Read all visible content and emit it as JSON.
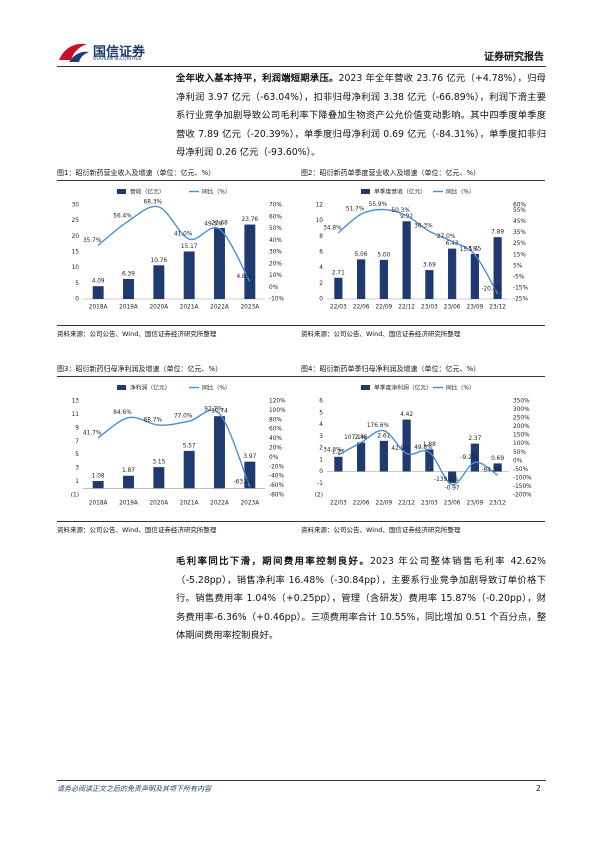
{
  "header": {
    "logo_text": "国信证券",
    "logo_subtext": "GUOSEN SECURITIES",
    "report_type": "证券研究报告"
  },
  "paragraphs": [
    {
      "lead": "全年收入基本持平，利润端短期承压。",
      "text": "2023 年全年营收 23.76 亿元（+4.78%），归母净利润 3.97 亿元（-63.04%），扣非归母净利润 3.38 亿元（-66.89%），利润下滑主要系行业竞争加剧导致公司毛利率下降叠加生物资产公允价值变动影响。其中四季度单季度营收 7.89 亿元（-20.39%），单季度归母净利润 0.69 亿元（-84.31%），单季度扣非归母净利润 0.26 亿元（-93.60%）。"
    },
    {
      "lead": "毛利率同比下滑，期间费用率控制良好。",
      "text": "2023 年公司整体销售毛利率 42.62%（-5.28pp），销售净利率 16.48%（-30.84pp），主要系行业竞争加剧导致订单价格下行。销售费用率 1.04%（+0.25pp），管理（含研发）费用率 15.87%（-0.20pp），财务费用率-6.36%（+0.46pp）。三项费用率合计 10.55%，同比增加 0.51 个百分点，整体期间费用率控制良好。"
    }
  ],
  "chart_data": [
    {
      "type": "bar",
      "title": "图1：昭衍新药营业收入及增速（单位：亿元、%）",
      "source": "资料来源：公司公告、Wind、国信证券经济研究所整理",
      "categories": [
        "2018A",
        "2019A",
        "2020A",
        "2021A",
        "2022A",
        "2023A"
      ],
      "series": [
        {
          "name": "营收（亿元）",
          "color": "#1f3a6e",
          "values": [
            4.09,
            6.39,
            10.76,
            15.17,
            22.68,
            23.76
          ],
          "value_labels": [
            "4.09",
            "6.39",
            "10.76",
            "15.17",
            "22.68",
            "23.76"
          ]
        },
        {
          "name": "同比（%）",
          "color": "#4a8fd8",
          "axis": "y2",
          "values": [
            35.7,
            56.4,
            68.3,
            41.0,
            49.5,
            4.8
          ],
          "value_labels": [
            "35.7%",
            "56.4%",
            "68.3%",
            "41.0%",
            "49.5%",
            "4.8%"
          ]
        }
      ],
      "ylim": [
        0,
        30
      ],
      "yticks": [
        0,
        5,
        10,
        15,
        20,
        25,
        30
      ],
      "y2lim": [
        -10,
        70
      ],
      "y2ticks": [
        {
          "value": -10,
          "label": "-10%"
        },
        {
          "value": 0,
          "label": "0%"
        },
        {
          "value": 10,
          "label": "10%"
        },
        {
          "value": 20,
          "label": "20%"
        },
        {
          "value": 30,
          "label": "30%"
        },
        {
          "value": 40,
          "label": "40%"
        },
        {
          "value": 50,
          "label": "50%"
        },
        {
          "value": 60,
          "label": "60%"
        },
        {
          "value": 70,
          "label": "70%"
        }
      ],
      "grid": false,
      "legend": "top"
    },
    {
      "type": "bar",
      "title": "图2：昭衍新药单季度营业收入及增速（单位：亿元、%）",
      "source": "资料来源：公司公告、Wind、国信证券经济研究所整理",
      "categories": [
        "22/03",
        "22/06",
        "22/09",
        "22/12",
        "23/03",
        "23/06",
        "23/09",
        "23/12"
      ],
      "series": [
        {
          "name": "单季度营收（亿元）",
          "color": "#1f3a6e",
          "values": [
            2.71,
            5.06,
            5.0,
            9.92,
            3.69,
            6.43,
            5.75,
            7.89
          ],
          "value_labels": [
            "2.71",
            "5.06",
            "5.00",
            "9.92",
            "3.69",
            "6.43",
            "5.75",
            "7.89"
          ]
        },
        {
          "name": "同比（%）",
          "color": "#4a8fd8",
          "axis": "y2",
          "values": [
            34.8,
            51.7,
            55.9,
            50.3,
            36.3,
            27.0,
            15.1,
            -20.4
          ],
          "value_labels": [
            "34.8%",
            "51.7%",
            "55.9%",
            "50.3%",
            "36.3%",
            "27.0%",
            "15.1%",
            "-20.4%"
          ]
        }
      ],
      "ylim": [
        0,
        12
      ],
      "yticks": [
        0,
        2,
        4,
        6,
        8,
        10,
        12
      ],
      "y2lim": [
        -25,
        60
      ],
      "y2ticks": [
        {
          "value": -25,
          "label": "-25%"
        },
        {
          "value": -15,
          "label": "-15%"
        },
        {
          "value": -5,
          "label": "-5%"
        },
        {
          "value": 5,
          "label": "5%"
        },
        {
          "value": 15,
          "label": "15%"
        },
        {
          "value": 25,
          "label": "25%"
        },
        {
          "value": 35,
          "label": "35%"
        },
        {
          "value": 45,
          "label": "45%"
        },
        {
          "value": 55,
          "label": "55%"
        },
        {
          "value": 60,
          "label": "60%"
        }
      ],
      "grid": false,
      "legend": "top"
    },
    {
      "type": "bar",
      "title": "图3：昭衍新药归母净利润及增速（单位：亿元、%）",
      "source": "资料来源：公司公告、Wind、国信证券经济研究所整理",
      "categories": [
        "2018A",
        "2019A",
        "2020A",
        "2021A",
        "2022A",
        "2023A"
      ],
      "series": [
        {
          "name": "净利润（亿元）",
          "color": "#1f3a6e",
          "values": [
            1.08,
            1.87,
            3.15,
            5.57,
            10.74,
            3.97
          ],
          "value_labels": [
            "1.08",
            "1.87",
            "3.15",
            "5.57",
            "10.74",
            "3.97"
          ]
        },
        {
          "name": "同比（%）",
          "color": "#4a8fd8",
          "axis": "y2",
          "values": [
            41.7,
            84.6,
            68.7,
            77.0,
            92.7,
            -63.0
          ],
          "value_labels": [
            "41.7%",
            "84.6%",
            "68.7%",
            "77.0%",
            "92.7%",
            "-63.0%"
          ]
        }
      ],
      "ylim": [
        -1,
        13
      ],
      "yticks": [
        {
          "value": -1,
          "label": "(1)"
        },
        1,
        3,
        5,
        7,
        9,
        11,
        13
      ],
      "y2lim": [
        -80,
        120
      ],
      "y2ticks": [
        {
          "value": -80,
          "label": "-80%"
        },
        {
          "value": -60,
          "label": "-60%"
        },
        {
          "value": -40,
          "label": "-40%"
        },
        {
          "value": -20,
          "label": "-20%"
        },
        {
          "value": 0,
          "label": "0%"
        },
        {
          "value": 20,
          "label": "20%"
        },
        {
          "value": 40,
          "label": "40%"
        },
        {
          "value": 60,
          "label": "60%"
        },
        {
          "value": 80,
          "label": "80%"
        },
        {
          "value": 100,
          "label": "100%"
        },
        {
          "value": 120,
          "label": "120%"
        }
      ],
      "grid": false,
      "legend": "top"
    },
    {
      "type": "bar",
      "title": "图4：昭衍新药单季归母净利润及增速（单位：亿元、%）",
      "source": "资料来源：公司公告、Wind、国信证券经济研究所整理",
      "categories": [
        "22/03",
        "22/06",
        "22/09",
        "22/12",
        "23/03",
        "23/06",
        "23/09",
        "23/12"
      ],
      "series": [
        {
          "name": "单季度净利润（亿元）",
          "color": "#1f3a6e",
          "values": [
            1.25,
            2.46,
            2.61,
            4.42,
            1.88,
            -0.97,
            2.37,
            0.69
          ],
          "value_labels": [
            "1.25",
            "2.46",
            "2.61",
            "4.42",
            "1.88",
            "-0.97",
            "2.37",
            "0.69"
          ]
        },
        {
          "name": "同比（%）",
          "color": "#4a8fd8",
          "axis": "y2",
          "values": [
            34.3,
            107.1,
            176.6,
            42.9,
            49.8,
            -139.5,
            -9.2,
            -84.3
          ],
          "value_labels": [
            "34.3%",
            "107.1%",
            "176.6%",
            "42.9%",
            "49.8%",
            "-139.5%",
            "-9.2%",
            "-84.3%"
          ]
        }
      ],
      "ylim": [
        -2,
        6
      ],
      "yticks": [
        {
          "value": -2,
          "label": "(2)"
        },
        -1,
        0,
        1,
        2,
        3,
        4,
        5,
        6
      ],
      "y2lim": [
        -200,
        350
      ],
      "y2ticks": [
        {
          "value": -200,
          "label": "-200%"
        },
        {
          "value": -150,
          "label": "-150%"
        },
        {
          "value": -100,
          "label": "-100%"
        },
        {
          "value": -50,
          "label": "-50%"
        },
        {
          "value": 0,
          "label": "0%"
        },
        {
          "value": 50,
          "label": "50%"
        },
        {
          "value": 100,
          "label": "100%"
        },
        {
          "value": 150,
          "label": "150%"
        },
        {
          "value": 200,
          "label": "200%"
        },
        {
          "value": 250,
          "label": "250%"
        },
        {
          "value": 300,
          "label": "300%"
        },
        {
          "value": 350,
          "label": "350%"
        }
      ],
      "grid": false,
      "legend": "top"
    }
  ],
  "footer": {
    "disclaimer": "请务必阅读正文之后的免责声明及其项下所有内容",
    "page": "2"
  }
}
